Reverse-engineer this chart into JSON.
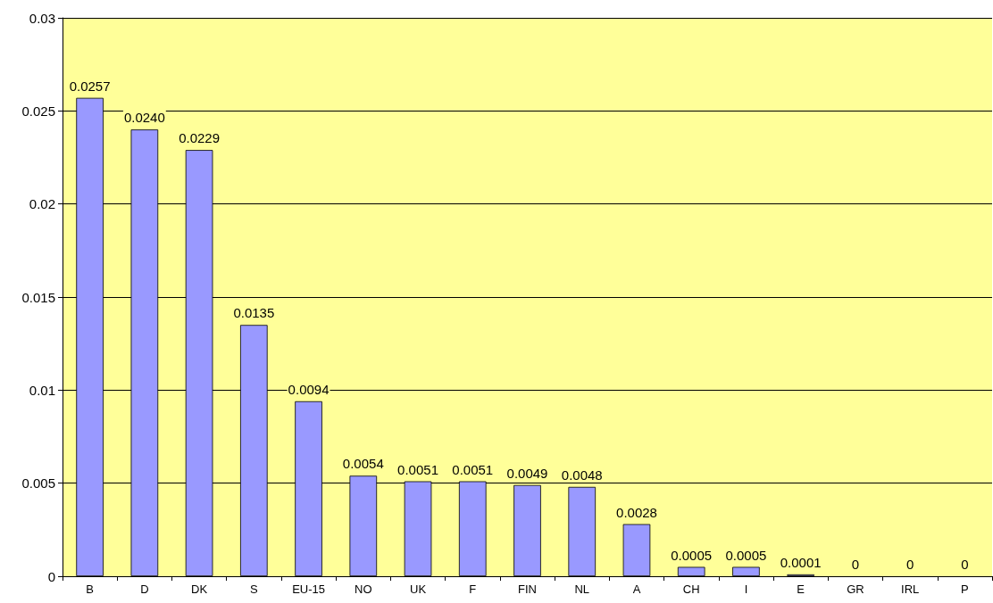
{
  "chart_data": {
    "type": "bar",
    "categories": [
      "B",
      "D",
      "DK",
      "S",
      "EU-15",
      "NO",
      "UK",
      "F",
      "FIN",
      "NL",
      "A",
      "CH",
      "I",
      "E",
      "GR",
      "IRL",
      "P"
    ],
    "values": [
      0.0257,
      0.024,
      0.0229,
      0.0135,
      0.0094,
      0.0054,
      0.0051,
      0.0051,
      0.0049,
      0.0048,
      0.0028,
      0.0005,
      0.0005,
      0.0001,
      0,
      0,
      0
    ],
    "value_labels": [
      "0.0257",
      "0.0240",
      "0.0229",
      "0.0135",
      "0.0094",
      "0.0054",
      "0.0051",
      "0.0051",
      "0.0049",
      "0.0048",
      "0.0028",
      "0.0005",
      "0.0005",
      "0.0001",
      "0",
      "0",
      "0"
    ],
    "color": "#9999ff",
    "ylim": [
      0,
      0.03
    ],
    "yticks": [
      0,
      0.005,
      0.01,
      0.015,
      0.02,
      0.025,
      0.03
    ],
    "grid": "y"
  }
}
